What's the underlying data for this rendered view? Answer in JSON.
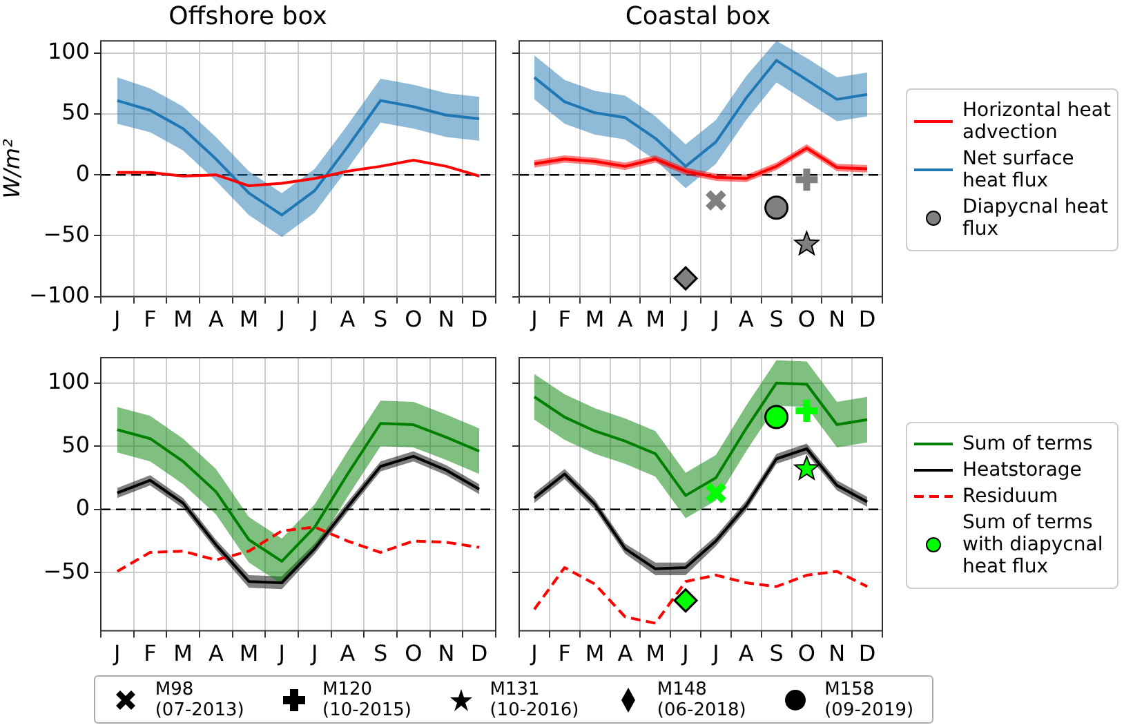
{
  "chart_data": [
    {
      "type": "line",
      "title": "Offshore box",
      "ylabel": "W/m²",
      "categories": [
        "J",
        "F",
        "M",
        "A",
        "M",
        "J",
        "J",
        "A",
        "S",
        "O",
        "N",
        "D"
      ],
      "ylim": [
        -100,
        110
      ],
      "yticks": [
        -100,
        -50,
        0,
        50,
        100
      ],
      "grid": true,
      "legend": false,
      "ref_lines": [
        {
          "axis": "y",
          "value": 0,
          "color": "#000000",
          "line_style": "dashed"
        }
      ],
      "series": [
        {
          "type": "line",
          "color": "#ff0000",
          "values": [
            2,
            2,
            -1,
            0,
            -9,
            -7,
            -3,
            3,
            7,
            12,
            7,
            -1
          ]
        },
        {
          "type": "line",
          "color": "#1f77b4",
          "values": [
            61,
            53,
            38,
            13,
            -15,
            -33,
            -13,
            23,
            61,
            56,
            49,
            46
          ],
          "upper": [
            80,
            71,
            56,
            31,
            3,
            -15,
            5,
            41,
            79,
            74,
            67,
            64
          ],
          "lower": [
            42,
            35,
            20,
            -5,
            -33,
            -51,
            -31,
            5,
            43,
            38,
            31,
            28
          ]
        }
      ]
    },
    {
      "type": "line",
      "title": "Coastal box",
      "categories": [
        "J",
        "F",
        "M",
        "A",
        "M",
        "J",
        "J",
        "A",
        "S",
        "O",
        "N",
        "D"
      ],
      "ylim": [
        -100,
        110
      ],
      "yticks": [
        -100,
        -50,
        0,
        50,
        100
      ],
      "grid": true,
      "tick_labels": "x",
      "legend": "right",
      "ref_lines": [
        {
          "axis": "y",
          "value": 0,
          "color": "#000000",
          "line_style": "dashed"
        }
      ],
      "series": [
        {
          "type": "line",
          "name": "Horizontal heat advection",
          "color": "#ff0000",
          "values": [
            9,
            13,
            11,
            7,
            13,
            3,
            -2,
            -3,
            7,
            22,
            6,
            5
          ],
          "upper": [
            12,
            16,
            14,
            10,
            16,
            6,
            1,
            0,
            10,
            25,
            9,
            8
          ],
          "lower": [
            6,
            10,
            8,
            4,
            10,
            0,
            -5,
            -6,
            4,
            19,
            3,
            2
          ]
        },
        {
          "type": "line",
          "name": "Net surface heat flux",
          "color": "#1f77b4",
          "values": [
            80,
            60,
            51,
            47,
            30,
            7,
            27,
            63,
            94,
            78,
            62,
            66
          ],
          "upper": [
            98,
            78,
            69,
            65,
            48,
            25,
            45,
            81,
            110,
            96,
            80,
            84
          ],
          "lower": [
            62,
            42,
            33,
            29,
            12,
            -11,
            9,
            45,
            76,
            60,
            44,
            48
          ]
        },
        {
          "type": "scatter",
          "color": "#808080",
          "marker": "cross",
          "values": [
            null,
            null,
            null,
            null,
            null,
            null,
            -21,
            null,
            null,
            null,
            null,
            null
          ]
        },
        {
          "type": "scatter",
          "color": "#808080",
          "marker": "plus",
          "values": [
            null,
            null,
            null,
            null,
            null,
            null,
            null,
            null,
            null,
            -4,
            null,
            null
          ]
        },
        {
          "type": "scatter",
          "color": "#808080",
          "marker": "star",
          "values": [
            null,
            null,
            null,
            null,
            null,
            null,
            null,
            null,
            null,
            -57,
            null,
            null
          ]
        },
        {
          "type": "scatter",
          "color": "#808080",
          "marker": "diamond",
          "values": [
            null,
            null,
            null,
            null,
            null,
            -85,
            null,
            null,
            null,
            null,
            null,
            null
          ]
        },
        {
          "type": "scatter",
          "name": "Diapycnal heat flux",
          "color": "#808080",
          "marker": "circle",
          "values": [
            null,
            null,
            null,
            null,
            null,
            null,
            null,
            null,
            -27,
            null,
            null,
            null
          ]
        }
      ]
    },
    {
      "type": "line",
      "categories": [
        "J",
        "F",
        "M",
        "A",
        "M",
        "J",
        "J",
        "A",
        "S",
        "O",
        "N",
        "D"
      ],
      "ylim": [
        -96,
        120
      ],
      "yticks": [
        -50,
        0,
        50,
        100
      ],
      "grid": true,
      "legend": false,
      "ref_lines": [
        {
          "axis": "y",
          "value": 0,
          "color": "#000000",
          "line_style": "dashed"
        }
      ],
      "series": [
        {
          "type": "line",
          "color": "#008000",
          "values": [
            63,
            56,
            38,
            14,
            -24,
            -41,
            -14,
            28,
            68,
            67,
            57,
            46
          ],
          "upper": [
            81,
            74,
            56,
            32,
            -6,
            -23,
            4,
            46,
            86,
            85,
            75,
            64
          ],
          "lower": [
            45,
            38,
            20,
            -4,
            -42,
            -59,
            -32,
            10,
            50,
            49,
            39,
            28
          ]
        },
        {
          "type": "line",
          "color": "#000000",
          "values": [
            13,
            23,
            5,
            -28,
            -57,
            -58,
            -31,
            2,
            34,
            42,
            31,
            16
          ],
          "upper": [
            17,
            27,
            9,
            -24,
            -52,
            -53,
            -27,
            6,
            38,
            46,
            35,
            20
          ],
          "lower": [
            9,
            19,
            1,
            -32,
            -62,
            -63,
            -35,
            -2,
            30,
            38,
            27,
            12
          ]
        },
        {
          "type": "line",
          "color": "#ff0000",
          "line_style": "dashed",
          "values": [
            -49,
            -34,
            -33,
            -40,
            -33,
            -17,
            -14,
            -25,
            -34,
            -25,
            -26,
            -30
          ]
        }
      ]
    },
    {
      "type": "line",
      "categories": [
        "J",
        "F",
        "M",
        "A",
        "M",
        "J",
        "J",
        "A",
        "S",
        "O",
        "N",
        "D"
      ],
      "ylim": [
        -96,
        120
      ],
      "yticks": [
        -50,
        0,
        50,
        100
      ],
      "grid": true,
      "tick_labels": "x",
      "legend": "right",
      "ref_lines": [
        {
          "axis": "y",
          "value": 0,
          "color": "#000000",
          "line_style": "dashed"
        }
      ],
      "series": [
        {
          "type": "line",
          "name": "Sum of terms",
          "color": "#008000",
          "values": [
            89,
            73,
            62,
            54,
            44,
            11,
            25,
            64,
            100,
            99,
            67,
            71
          ],
          "upper": [
            107,
            91,
            80,
            72,
            62,
            29,
            43,
            82,
            118,
            117,
            85,
            89
          ],
          "lower": [
            71,
            55,
            44,
            36,
            26,
            -7,
            7,
            46,
            82,
            81,
            49,
            53
          ]
        },
        {
          "type": "line",
          "name": "Heatstorage",
          "color": "#000000",
          "values": [
            9,
            28,
            4,
            -31,
            -47,
            -46,
            -25,
            3,
            40,
            48,
            19,
            6
          ],
          "upper": [
            13,
            32,
            8,
            -27,
            -42,
            -42,
            -21,
            7,
            44,
            52,
            23,
            10
          ],
          "lower": [
            5,
            24,
            0,
            -35,
            -52,
            -52,
            -29,
            -1,
            36,
            44,
            15,
            2
          ]
        },
        {
          "type": "line",
          "name": "Residuum",
          "color": "#ff0000",
          "line_style": "dashed",
          "values": [
            -79,
            -46,
            -59,
            -85,
            -90,
            -57,
            -52,
            -58,
            -61,
            -52,
            -49,
            -61
          ]
        },
        {
          "type": "scatter",
          "color": "#00ff00",
          "marker": "cross",
          "values": [
            null,
            null,
            null,
            null,
            null,
            null,
            13,
            null,
            null,
            null,
            null,
            null
          ]
        },
        {
          "type": "scatter",
          "color": "#00ff00",
          "marker": "plus",
          "values": [
            null,
            null,
            null,
            null,
            null,
            null,
            null,
            null,
            null,
            78,
            null,
            null
          ]
        },
        {
          "type": "scatter",
          "color": "#00ff00",
          "marker": "star",
          "values": [
            null,
            null,
            null,
            null,
            null,
            null,
            null,
            null,
            null,
            32,
            null,
            null
          ]
        },
        {
          "type": "scatter",
          "color": "#00ff00",
          "marker": "diamond",
          "values": [
            null,
            null,
            null,
            null,
            null,
            -72,
            null,
            null,
            null,
            null,
            null,
            null
          ]
        },
        {
          "type": "scatter",
          "name": "Sum of terms with diapycnal heat flux",
          "color": "#00ff00",
          "marker": "circle",
          "values": [
            null,
            null,
            null,
            null,
            null,
            null,
            null,
            null,
            73,
            null,
            null,
            null
          ]
        }
      ]
    },
    {
      "type": "other",
      "annotations": [
        "M98\n(07-2013)",
        "M120\n(10-2015)",
        "M131\n(10-2016)",
        "M148\n(06-2018)",
        "M158\n(09-2019)"
      ]
    }
  ]
}
